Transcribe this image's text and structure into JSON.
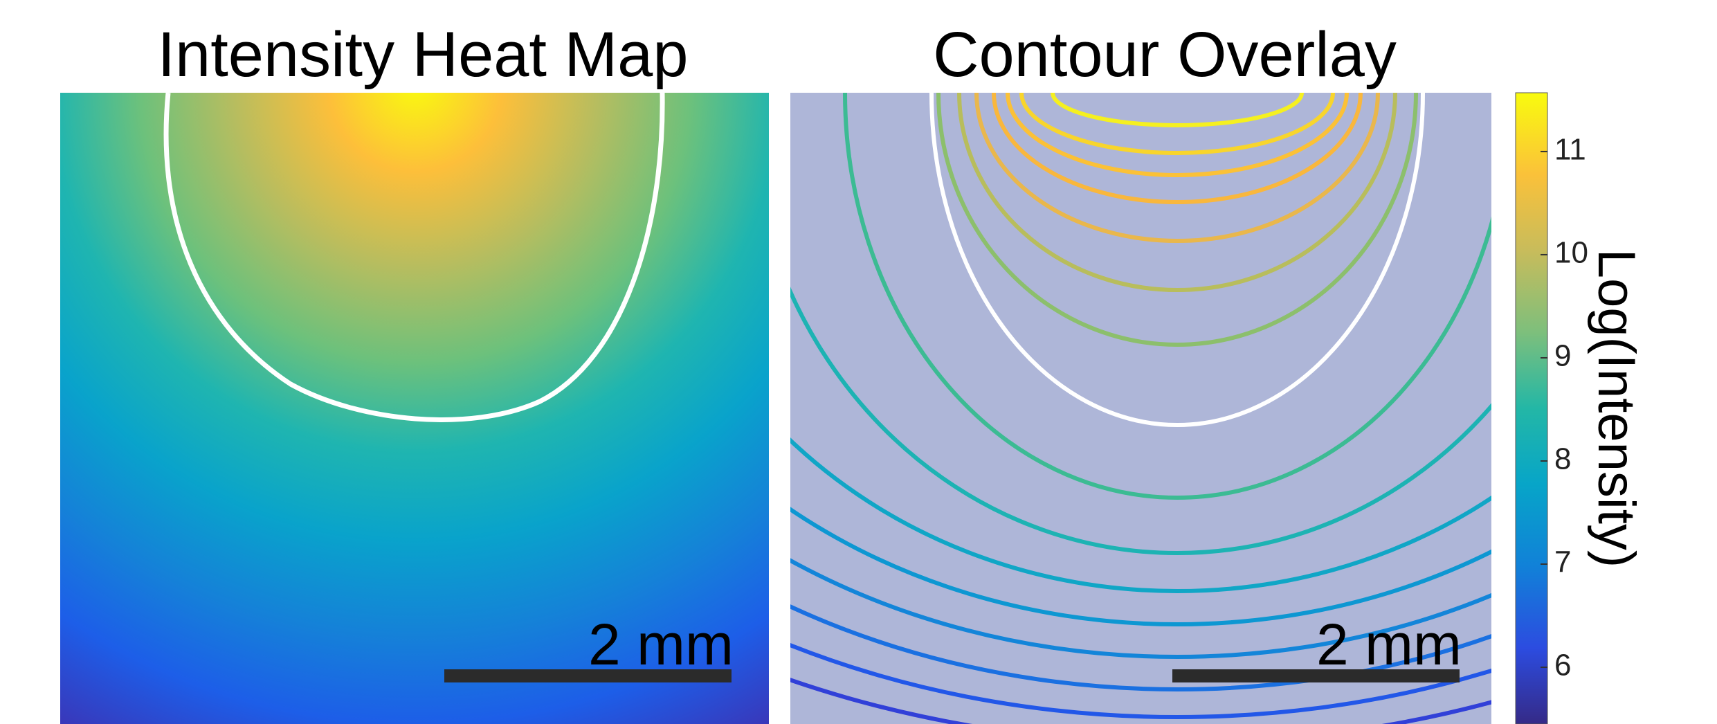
{
  "chart_data": [
    {
      "type": "heatmap",
      "title": "Intensity Heat Map",
      "scale_bar": "2 mm",
      "colormap": "parula"
    },
    {
      "type": "contour",
      "title": "Contour Overlay",
      "scale_bar": "2 mm",
      "colormap": "parula",
      "colorbar": {
        "label": "Log(Intensity)",
        "ylim": [
          5.45,
          11.57
        ],
        "yticks": [
          6,
          7,
          8,
          9,
          10,
          11
        ]
      }
    }
  ]
}
